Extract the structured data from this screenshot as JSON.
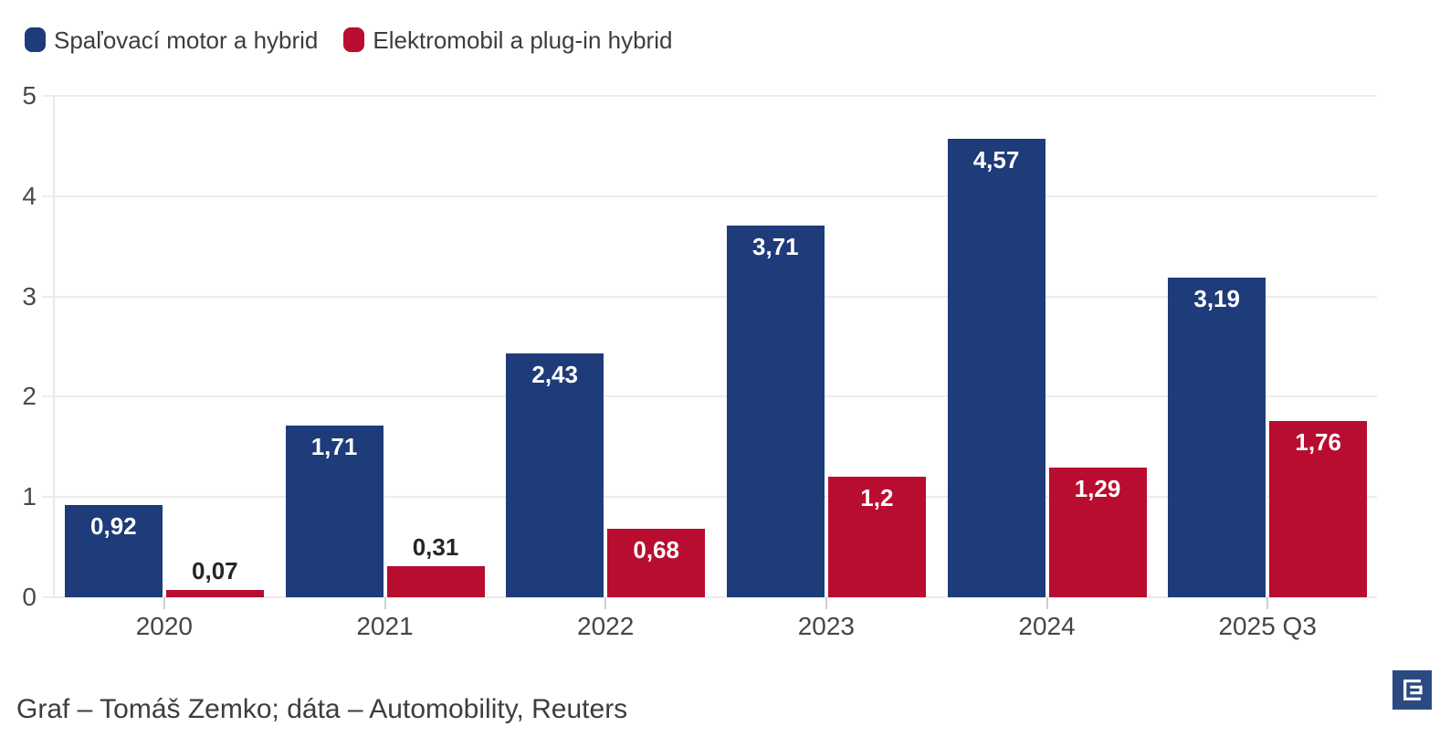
{
  "legend": {
    "items": [
      {
        "label": "Spaľovací motor a hybrid",
        "color": "#1e3b7a"
      },
      {
        "label": "Elektromobil a plug-in hybrid",
        "color": "#b80d30"
      }
    ]
  },
  "chart_data": {
    "type": "bar",
    "categories": [
      "2020",
      "2021",
      "2022",
      "2023",
      "2024",
      "2025 Q3"
    ],
    "series": [
      {
        "name": "Spaľovací motor a hybrid",
        "color": "#1e3b7a",
        "values": [
          0.92,
          1.71,
          2.43,
          3.71,
          4.57,
          3.19
        ],
        "labels": [
          "0,92",
          "1,71",
          "2,43",
          "3,71",
          "4,57",
          "3,19"
        ]
      },
      {
        "name": "Elektromobil a plug-in hybrid",
        "color": "#b80d30",
        "values": [
          0.07,
          0.31,
          0.68,
          1.2,
          1.29,
          1.76
        ],
        "labels": [
          "0,07",
          "0,31",
          "0,68",
          "1,2",
          "1,29",
          "1,76"
        ]
      }
    ],
    "title": "",
    "xlabel": "",
    "ylabel": "",
    "ylim": [
      0,
      5
    ],
    "yticks": [
      0,
      1,
      2,
      3,
      4,
      5
    ],
    "grid": true,
    "legend_position": "top-left",
    "value_labels": "on-bars, white inside tall bars, dark above short bars"
  },
  "footer": {
    "credit": "Graf – Tomáš Zemko; dáta – Automobility, Reuters"
  },
  "logo": {
    "name": "E logo (Denník E)",
    "background": "#2b4a82",
    "glyph_color": "#ffffff"
  }
}
